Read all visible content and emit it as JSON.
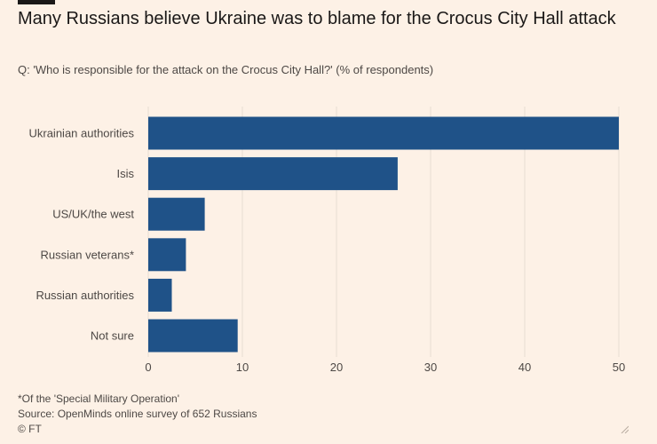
{
  "header": {
    "title": "Many Russians believe Ukraine was to blame for the Crocus City Hall attack",
    "subtitle": "Q: 'Who is responsible for the attack on the Crocus City Hall?' (% of respondents)"
  },
  "footer": {
    "note": "*Of the 'Special Military Operation'",
    "source": "Source: OpenMinds online survey of 652 Russians",
    "credit": "© FT"
  },
  "colors": {
    "bar": "#1f5288",
    "grid": "#e8ddd2",
    "background": "#fdf1e6",
    "label": "#4d4845"
  },
  "chart_data": {
    "type": "bar",
    "orientation": "horizontal",
    "categories": [
      "Ukrainian authorities",
      "Isis",
      "US/UK/the west",
      "Russian veterans*",
      "Russian authorities",
      "Not sure"
    ],
    "values": [
      50,
      26.5,
      6,
      4,
      2.5,
      9.5
    ],
    "xlim": [
      0,
      50
    ],
    "xticks": [
      0,
      10,
      20,
      30,
      40,
      50
    ],
    "grid": true
  }
}
